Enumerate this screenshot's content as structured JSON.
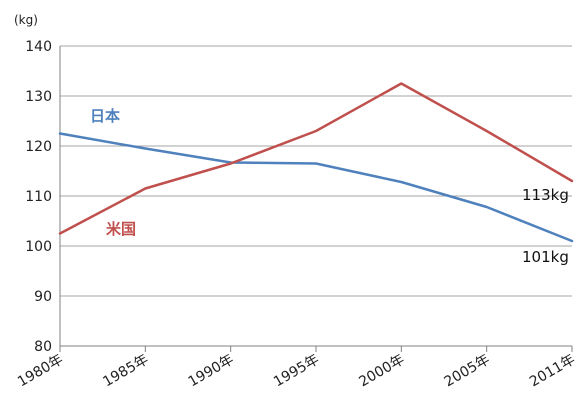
{
  "chart_data": {
    "type": "line",
    "unit_label": "(kg)",
    "categories": [
      "1980年",
      "1985年",
      "1990年",
      "1995年",
      "2000年",
      "2005年",
      "2011年"
    ],
    "ylim": [
      80,
      140
    ],
    "yticks": [
      80,
      90,
      100,
      110,
      120,
      130,
      140
    ],
    "grid": true,
    "series": [
      {
        "name": "日本",
        "color": "#4f81bd",
        "values": [
          122.5,
          119.5,
          116.7,
          116.5,
          112.8,
          107.8,
          101
        ],
        "end_label": "101kg"
      },
      {
        "name": "米国",
        "color": "#c0504d",
        "values": [
          102.5,
          111.5,
          116.5,
          123,
          132.5,
          123,
          113
        ],
        "end_label": "113kg"
      }
    ]
  }
}
